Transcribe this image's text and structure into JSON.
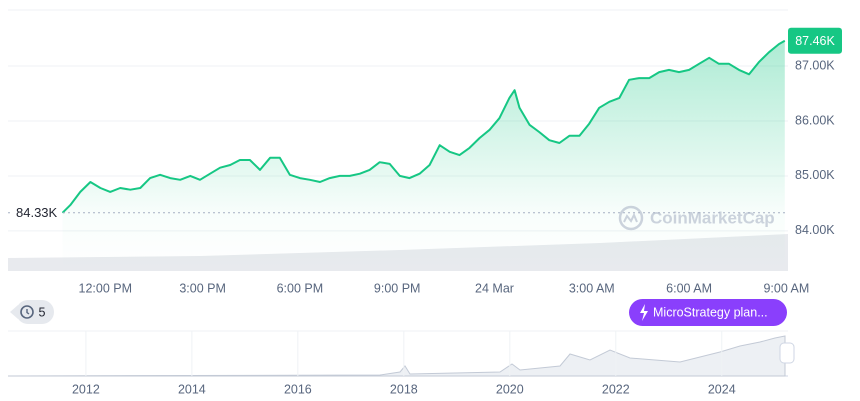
{
  "chart_data": {
    "type": "line",
    "x": [
      10.68,
      10.92,
      11.23,
      11.54,
      11.85,
      12.15,
      12.46,
      12.77,
      13.08,
      13.38,
      13.69,
      14.0,
      14.31,
      14.62,
      14.92,
      15.23,
      15.54,
      15.85,
      16.15,
      16.46,
      16.77,
      17.08,
      17.38,
      17.69,
      18.0,
      18.31,
      18.62,
      18.92,
      19.23,
      19.54,
      19.85,
      20.15,
      20.46,
      20.77,
      21.08,
      21.38,
      21.69,
      22.0,
      22.31,
      22.62,
      22.92,
      23.23,
      23.54,
      23.85,
      24.15,
      24.46,
      24.62,
      24.77,
      25.08,
      25.38,
      25.69,
      26.0,
      26.31,
      26.62,
      26.92,
      27.23,
      27.54,
      27.85,
      28.15,
      28.46,
      28.77,
      29.08,
      29.38,
      29.69,
      30.0,
      30.31,
      30.62,
      30.92,
      31.23,
      31.54,
      31.85,
      32.15,
      32.46,
      32.77,
      32.95
    ],
    "series": [
      {
        "color": "#16c784",
        "values": [
          84330,
          84470,
          84710,
          84890,
          84780,
          84710,
          84780,
          84750,
          84780,
          84960,
          85020,
          84960,
          84930,
          85000,
          84930,
          85040,
          85150,
          85200,
          85290,
          85290,
          85110,
          85330,
          85330,
          85020,
          84960,
          84930,
          84890,
          84960,
          85000,
          85000,
          85040,
          85110,
          85250,
          85220,
          85000,
          84960,
          85040,
          85200,
          85560,
          85440,
          85380,
          85510,
          85690,
          85840,
          86050,
          86420,
          86560,
          86240,
          85930,
          85800,
          85650,
          85600,
          85730,
          85730,
          85950,
          86240,
          86350,
          86420,
          86750,
          86780,
          86780,
          86890,
          86930,
          86890,
          86930,
          87040,
          87150,
          87040,
          87040,
          86930,
          86850,
          87070,
          87250,
          87400,
          87460
        ]
      }
    ],
    "xlim": [
      9.0,
      33.05
    ],
    "xticks": [
      {
        "value": 12,
        "label": "12:00 PM"
      },
      {
        "value": 15,
        "label": "3:00 PM"
      },
      {
        "value": 18,
        "label": "6:00 PM"
      },
      {
        "value": 21,
        "label": "9:00 PM"
      },
      {
        "value": 24,
        "label": "24 Mar"
      },
      {
        "value": 27,
        "label": "3:00 AM"
      },
      {
        "value": 30,
        "label": "6:00 AM"
      },
      {
        "value": 33,
        "label": "9:00 AM"
      }
    ],
    "ylim": [
      83270,
      88020
    ],
    "yticks": [
      {
        "value": 84000,
        "label": "84.00K"
      },
      {
        "value": 85000,
        "label": "85.00K"
      },
      {
        "value": 86000,
        "label": "86.00K"
      },
      {
        "value": 87000,
        "label": "87.00K"
      }
    ],
    "grid": true,
    "current_price": {
      "value": 87460,
      "label": "87.46K"
    },
    "open_price": {
      "value": 84330,
      "label": "84.33K"
    },
    "watermark": "CoinMarketCap",
    "events_count": 5,
    "annotation": "MicroStrategy plan...",
    "navigator": {
      "xlim": [
        2010.53,
        2025.25
      ],
      "xticks": [
        2012,
        2014,
        2016,
        2018,
        2020,
        2022,
        2024
      ]
    }
  }
}
